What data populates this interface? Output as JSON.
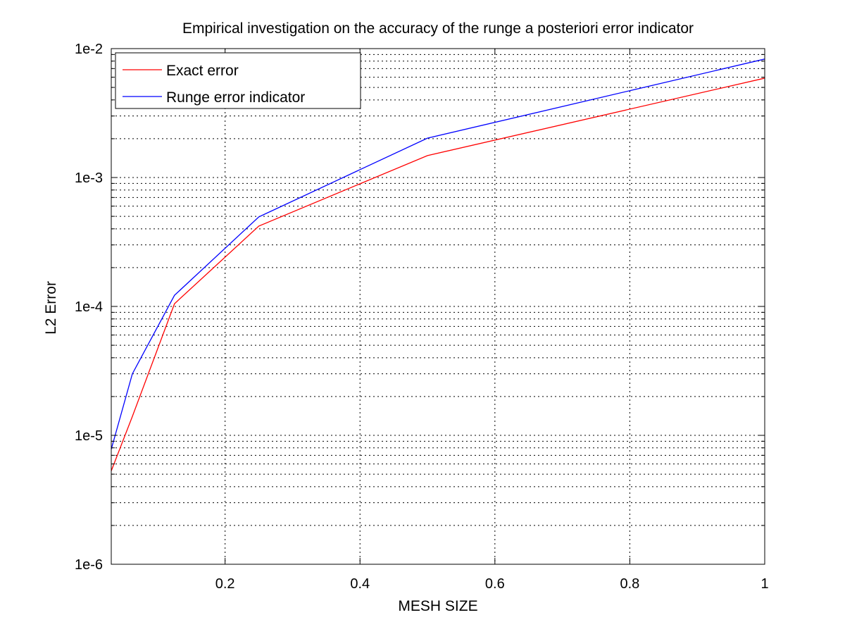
{
  "chart_data": {
    "type": "line",
    "title": "Empirical investigation on the accuracy of the runge a posteriori error indicator",
    "xlabel": "MESH SIZE",
    "ylabel": "L2 Error",
    "xscale": "linear",
    "yscale": "log",
    "xlim": [
      0.03125,
      1
    ],
    "ylim": [
      1e-06,
      0.01
    ],
    "grid": true,
    "legend_position": "top-left",
    "x_ticks": [
      {
        "value": 0.2,
        "label": "0.2"
      },
      {
        "value": 0.4,
        "label": "0.4"
      },
      {
        "value": 0.6,
        "label": "0.6"
      },
      {
        "value": 0.8,
        "label": "0.8"
      },
      {
        "value": 1,
        "label": "1"
      }
    ],
    "y_ticks": [
      {
        "value": 1e-06,
        "label": "1e-6"
      },
      {
        "value": 1e-05,
        "label": "1e-5"
      },
      {
        "value": 0.0001,
        "label": "1e-4"
      },
      {
        "value": 0.001,
        "label": "1e-3"
      },
      {
        "value": 0.01,
        "label": "1e-2"
      }
    ],
    "x": [
      0.03125,
      0.0625,
      0.125,
      0.25,
      0.5,
      1
    ],
    "series": [
      {
        "name": "Exact error",
        "color": "#ff0000",
        "values": [
          5.3e-06,
          1.4e-05,
          0.000105,
          0.00042,
          0.00148,
          0.0059
        ]
      },
      {
        "name": "Runge error indicator",
        "color": "#0000ff",
        "values": [
          7.8e-06,
          3e-05,
          0.000122,
          0.000495,
          0.00202,
          0.0083
        ]
      }
    ]
  }
}
